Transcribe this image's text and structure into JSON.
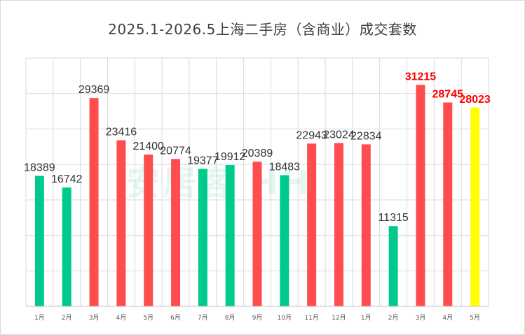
{
  "chart_data": {
    "type": "bar",
    "title": "2025.1-2026.5上海二手房（含商业）成交套数",
    "xlabel": "",
    "ylabel": "",
    "ylim": [
      0,
      35000
    ],
    "grid": true,
    "legend": "none",
    "categories": [
      "1月",
      "2月",
      "3月",
      "4月",
      "5月",
      "6月",
      "7月",
      "8月",
      "9月",
      "10月",
      "11月",
      "12月",
      "1月",
      "2月",
      "3月",
      "4月",
      "5月"
    ],
    "values": [
      18389,
      16742,
      29369,
      23416,
      21400,
      20774,
      19377,
      19912,
      20389,
      18483,
      22943,
      23024,
      22834,
      11315,
      31215,
      28745,
      28023
    ],
    "bar_colors": [
      "#00c98d",
      "#00c98d",
      "#ff4d4f",
      "#ff4d4f",
      "#ff4d4f",
      "#ff4d4f",
      "#00c98d",
      "#00c98d",
      "#ff4d4f",
      "#00c98d",
      "#ff4d4f",
      "#ff4d4f",
      "#ff4d4f",
      "#00c98d",
      "#ff4d4f",
      "#ff4d4f",
      "#ffff00"
    ],
    "highlight_labels": [
      false,
      false,
      false,
      false,
      false,
      false,
      false,
      false,
      false,
      false,
      false,
      false,
      false,
      false,
      true,
      true,
      true
    ],
    "highlight_color": "#ff0000"
  },
  "watermark": "安居客 HH"
}
